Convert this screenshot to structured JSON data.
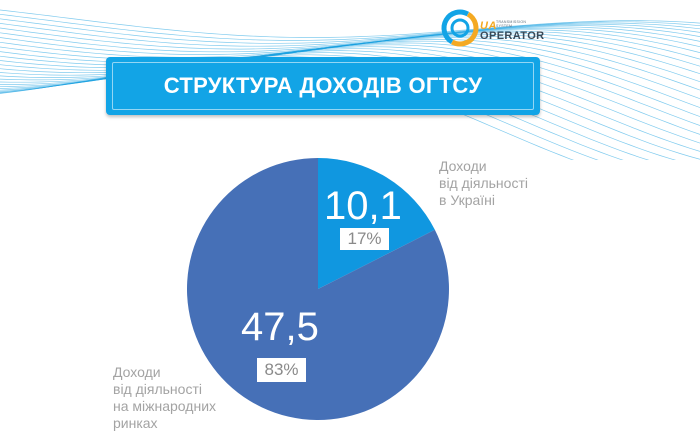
{
  "header": {
    "title": "СТРУКТУРА ДОХОДІВ ОГТСУ",
    "logo": {
      "prefix": "UA",
      "small_line1": "TRANSMISSION",
      "small_line2": "SYSTEM",
      "name": "OPERATOR"
    }
  },
  "colors": {
    "banner": "#12a4e6",
    "slice_domestic": "#1097e0",
    "slice_international": "#4670b7",
    "label_text": "#a3a3a3",
    "wave_lines": "#1aa0e0"
  },
  "chart_data": {
    "type": "pie",
    "title": "СТРУКТУРА ДОХОДІВ ОГТСУ",
    "slices": [
      {
        "label_lines": [
          "Доходи",
          "від діяльності",
          "в Україні"
        ],
        "value": 10.1,
        "value_text": "10,1",
        "percent": 17,
        "percent_text": "17%",
        "color": "#1097e0"
      },
      {
        "label_lines": [
          "Доходи",
          "від діяльності",
          "на міжнародних",
          "ринках"
        ],
        "value": 47.5,
        "value_text": "47,5",
        "percent": 83,
        "percent_text": "83%",
        "color": "#4670b7"
      }
    ]
  }
}
